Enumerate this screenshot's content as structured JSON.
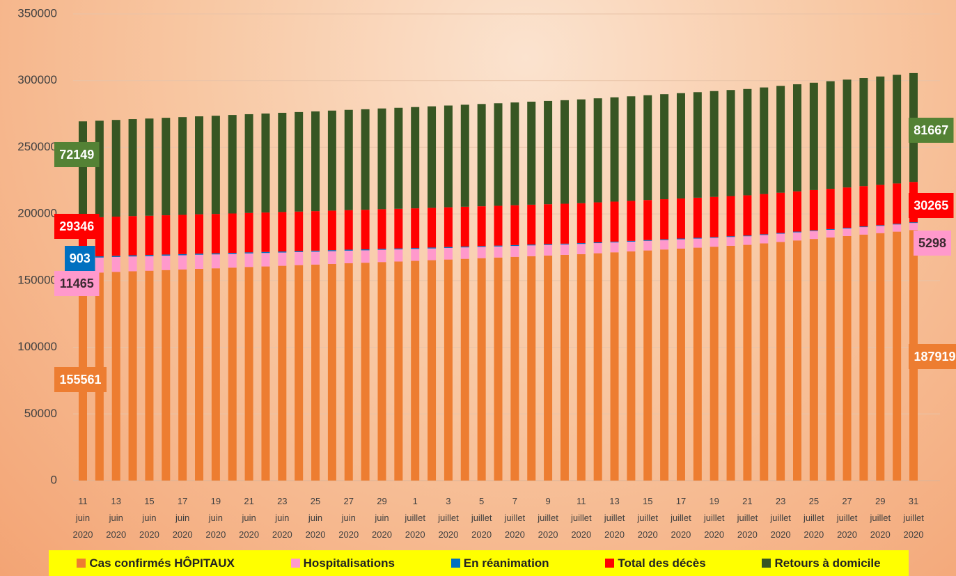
{
  "chart_data": {
    "type": "stacked_bar",
    "categories": [
      "11 juin 2020",
      null,
      "13 juin 2020",
      null,
      "15 juin 2020",
      null,
      "17 juin 2020",
      null,
      "19 juin 2020",
      null,
      "21 juin 2020",
      null,
      "23 juin 2020",
      null,
      "25 juin 2020",
      null,
      "27 juin 2020",
      null,
      "29 juin 2020",
      null,
      "1 juillet 2020",
      null,
      "3 juillet 2020",
      null,
      "5 juillet 2020",
      null,
      "7 juillet 2020",
      null,
      "9 juillet 2020",
      null,
      "11 juillet 2020",
      null,
      "13 juillet 2020",
      null,
      "15 juillet 2020",
      null,
      "17 juillet 2020",
      null,
      "19 juillet 2020",
      null,
      "21 juillet 2020",
      null,
      "23 juillet 2020",
      null,
      "25 juillet 2020",
      null,
      "27 juillet 2020",
      null,
      "29 juillet 2020",
      null,
      "31 juillet 2020"
    ],
    "series": [
      {
        "name": "Cas confirmés HÔPITAUX",
        "color": "#ed7d31",
        "values": [
          155561,
          156000,
          156500,
          157000,
          157400,
          157900,
          158300,
          158800,
          159200,
          159700,
          160200,
          160600,
          161100,
          161600,
          162000,
          162500,
          163000,
          163400,
          163900,
          164300,
          164800,
          165300,
          165800,
          166300,
          166800,
          167300,
          167800,
          168300,
          168800,
          169300,
          169800,
          170500,
          171200,
          171900,
          172600,
          173300,
          174000,
          174700,
          175400,
          176100,
          176800,
          177900,
          179000,
          180100,
          181200,
          182300,
          183400,
          184500,
          185600,
          186700,
          187919
        ]
      },
      {
        "name": "Hospitalisations",
        "color": "#ff99cc",
        "values": [
          11465,
          11300,
          11200,
          11100,
          10950,
          10800,
          10700,
          10600,
          10450,
          10300,
          10200,
          10100,
          9950,
          9800,
          9700,
          9600,
          9450,
          9300,
          9200,
          9100,
          8950,
          8800,
          8700,
          8600,
          8450,
          8300,
          8200,
          8100,
          7950,
          7800,
          7700,
          7600,
          7450,
          7300,
          7200,
          7100,
          6950,
          6800,
          6700,
          6600,
          6450,
          6300,
          6200,
          6100,
          5950,
          5800,
          5700,
          5600,
          5450,
          5400,
          5298
        ]
      },
      {
        "name": "En réanimation",
        "color": "#0070c0",
        "values": [
          903,
          890,
          880,
          870,
          860,
          850,
          840,
          830,
          820,
          810,
          800,
          790,
          780,
          770,
          760,
          750,
          740,
          730,
          720,
          710,
          700,
          690,
          680,
          670,
          660,
          650,
          640,
          630,
          620,
          610,
          600,
          595,
          590,
          585,
          580,
          575,
          570,
          565,
          560,
          555,
          550,
          545,
          540,
          535,
          530,
          525,
          520,
          515,
          510,
          505,
          500
        ]
      },
      {
        "name": "Total des décès",
        "color": "#ff0000",
        "values": [
          29346,
          29370,
          29390,
          29410,
          29430,
          29450,
          29470,
          29490,
          29510,
          29530,
          29550,
          29570,
          29590,
          29610,
          29630,
          29650,
          29670,
          29690,
          29710,
          29730,
          29750,
          29770,
          29790,
          29810,
          29830,
          29850,
          29870,
          29890,
          29910,
          29930,
          29950,
          29970,
          29990,
          30010,
          30030,
          30050,
          30070,
          30090,
          30110,
          30130,
          30150,
          30165,
          30180,
          30195,
          30205,
          30215,
          30225,
          30235,
          30245,
          30255,
          30265
        ]
      },
      {
        "name": "Retours à domicile",
        "color": "#375623",
        "values": [
          72149,
          72340,
          72530,
          72720,
          72910,
          73100,
          73290,
          73480,
          73670,
          73860,
          74050,
          74240,
          74430,
          74620,
          74810,
          75000,
          75190,
          75380,
          75570,
          75760,
          75950,
          76140,
          76330,
          76520,
          76710,
          76900,
          77090,
          77280,
          77470,
          77660,
          77850,
          78040,
          78230,
          78420,
          78610,
          78800,
          78990,
          79180,
          79370,
          79560,
          79750,
          79940,
          80130,
          80320,
          80510,
          80700,
          80890,
          81080,
          81270,
          81460,
          81667
        ]
      }
    ],
    "ylim": [
      0,
      350000
    ],
    "yticks": [
      0,
      50000,
      100000,
      150000,
      200000,
      250000,
      300000,
      350000
    ],
    "grid": true,
    "legend": "bottom"
  }
}
